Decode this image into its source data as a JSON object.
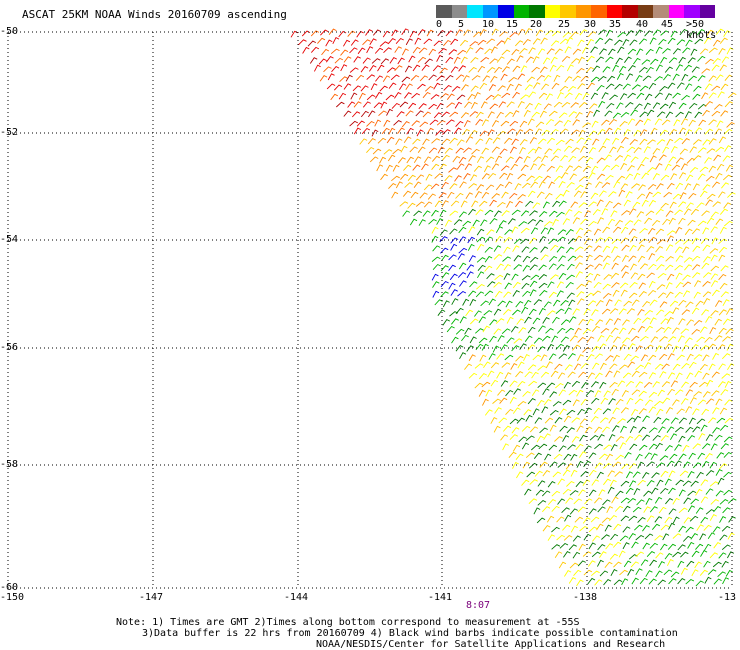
{
  "title": "ASCAT 25KM NOAA Winds 20160709 ascending",
  "legend": {
    "colors": [
      "#5a5a5a",
      "#8c8c8c",
      "#00e6ff",
      "#0096ff",
      "#0000e6",
      "#00b400",
      "#007800",
      "#ffff00",
      "#ffc800",
      "#ff9600",
      "#ff6400",
      "#ff0000",
      "#b40000",
      "#783c14",
      "#b48c78",
      "#ff00ff",
      "#a000ff",
      "#6400a0"
    ],
    "labels": [
      "0",
      "5",
      "10",
      "15",
      "20",
      "25",
      "30",
      "35",
      "40",
      "45",
      ">50 knots"
    ],
    "unit_label": "knots"
  },
  "axes": {
    "lat_labels": [
      "-50",
      "-52",
      "-54",
      "-56",
      "-58",
      "-60"
    ],
    "lon_labels": [
      "-150",
      "-147",
      "-144",
      "-141",
      "-138",
      "-13"
    ]
  },
  "time_label": "8:07",
  "notes": {
    "line1": "Note: 1) Times are GMT 2)Times along bottom correspond to measurement at -55S",
    "line2": "3)Data buffer is 22 hrs from 20160709 4) Black wind barbs indicate possible contamination",
    "line3": "NOAA/NESDIS/Center for Satellite Applications and Research"
  }
}
